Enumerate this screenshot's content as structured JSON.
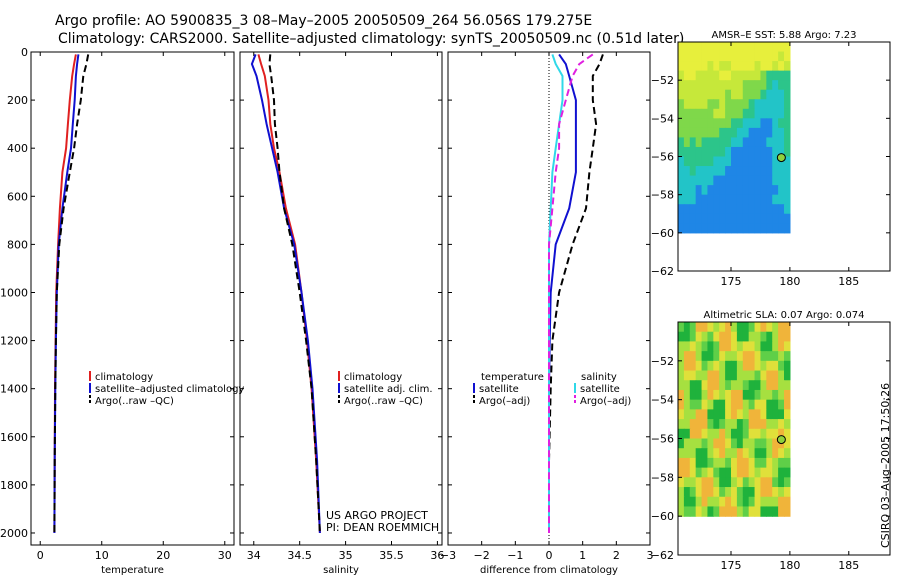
{
  "header": {
    "line1": "Argo profile: AO 5900835_3 08–May–2005 20050509_264 56.056S 179.275E",
    "line2": "Climatology: CARS2000. Satellite–adjusted climatology: synTS_20050509.nc (0.51d later)"
  },
  "credit": {
    "line1": "US ARGO PROJECT",
    "line2": "PI: DEAN ROEMMICH"
  },
  "stamp": "CSIRO 03–Aug–2005 17:50:26",
  "colors": {
    "red": "#e02020",
    "blue": "#1010d0",
    "black": "#000000",
    "cyan": "#30d8e8",
    "magenta": "#e020e0"
  },
  "chart_data": [
    {
      "type": "line",
      "name": "temperature",
      "xlabel": "temperature",
      "xlim": [
        -1.5,
        31.5
      ],
      "xticks": [
        "0",
        "10",
        "20",
        "30"
      ],
      "ylim": [
        2050,
        0
      ],
      "yticks": [
        "0",
        "200",
        "400",
        "600",
        "800",
        "1000",
        "1200",
        "1400",
        "1600",
        "1800",
        "2000"
      ],
      "series": [
        {
          "name": "climatology",
          "color": "red",
          "dash": false,
          "x": [
            5.8,
            5.5,
            5.2,
            4.8,
            4.5,
            4.2,
            3.6,
            3.2,
            2.9,
            2.6,
            2.5,
            2.4,
            2.35,
            2.3
          ],
          "y": [
            10,
            50,
            100,
            200,
            300,
            400,
            500,
            650,
            800,
            1000,
            1200,
            1400,
            1700,
            2000
          ]
        },
        {
          "name": "satellite–adjusted climatology",
          "color": "blue",
          "dash": false,
          "x": [
            6.2,
            6.0,
            5.8,
            5.6,
            5.3,
            5.0,
            4.4,
            3.6,
            3.0,
            2.7,
            2.55,
            2.45,
            2.35,
            2.3
          ],
          "y": [
            10,
            50,
            100,
            200,
            300,
            400,
            500,
            650,
            800,
            1000,
            1200,
            1400,
            1700,
            2000
          ]
        },
        {
          "name": "Argo(..raw –QC)",
          "color": "black",
          "dash": true,
          "x": [
            7.8,
            7.5,
            7.0,
            6.6,
            6.0,
            5.5,
            4.8,
            3.8,
            3.1,
            2.7,
            2.55,
            2.45,
            2.35,
            2.3
          ],
          "y": [
            10,
            50,
            100,
            200,
            300,
            400,
            500,
            650,
            800,
            1000,
            1200,
            1400,
            1700,
            2000
          ]
        }
      ]
    },
    {
      "type": "line",
      "name": "salinity",
      "xlabel": "salinity",
      "xlim": [
        33.85,
        36.05
      ],
      "xticks": [
        "34",
        "34.5",
        "35",
        "35.5",
        "36"
      ],
      "ylim": [
        2050,
        0
      ],
      "series": [
        {
          "name": "climatology",
          "color": "red",
          "dash": false,
          "x": [
            34.05,
            34.08,
            34.12,
            34.16,
            34.18,
            34.22,
            34.28,
            34.35,
            34.45,
            34.52,
            34.58,
            34.63,
            34.68,
            34.72
          ],
          "y": [
            10,
            50,
            100,
            200,
            300,
            400,
            500,
            650,
            800,
            1000,
            1200,
            1400,
            1700,
            2000
          ]
        },
        {
          "name": "satellite adj. clim.",
          "color": "blue",
          "dash": false,
          "x": [
            34.02,
            33.98,
            34.03,
            34.09,
            34.14,
            34.2,
            34.26,
            34.33,
            34.44,
            34.52,
            34.59,
            34.64,
            34.69,
            34.72
          ],
          "y": [
            10,
            50,
            100,
            200,
            300,
            400,
            500,
            650,
            800,
            1000,
            1200,
            1400,
            1700,
            2000
          ]
        },
        {
          "name": "Argo(..raw –QC)",
          "color": "black",
          "dash": true,
          "x": [
            34.18,
            34.17,
            34.19,
            34.22,
            34.23,
            34.26,
            34.28,
            34.33,
            34.42,
            34.5,
            34.57,
            34.63,
            34.68,
            34.72
          ],
          "y": [
            10,
            50,
            100,
            200,
            300,
            400,
            500,
            650,
            800,
            1000,
            1200,
            1400,
            1700,
            2000
          ]
        }
      ]
    },
    {
      "type": "line",
      "name": "difference",
      "xlabel": "difference from climatology",
      "xlim": [
        -3,
        3
      ],
      "xticks": [
        "−3",
        "−2",
        "−1",
        "0",
        "1",
        "2",
        "3"
      ],
      "ylim": [
        2050,
        0
      ],
      "legend_left": {
        "title": "temperature",
        "entries": [
          "satellite",
          "Argo(–adj)"
        ]
      },
      "legend_right": {
        "title": "salinity",
        "entries": [
          "satellite",
          "Argo(–adj)"
        ]
      },
      "series": [
        {
          "name": "temperature satellite",
          "color": "blue",
          "dash": false,
          "x": [
            0.3,
            0.5,
            0.6,
            0.8,
            0.8,
            0.8,
            0.8,
            0.6,
            0.2,
            0.05,
            0.02,
            0.0,
            0.0,
            0.0
          ],
          "y": [
            10,
            50,
            100,
            200,
            300,
            400,
            500,
            650,
            800,
            1000,
            1200,
            1400,
            1700,
            2000
          ]
        },
        {
          "name": "temperature Argo(–adj)",
          "color": "black",
          "dash": true,
          "x": [
            1.6,
            1.5,
            1.3,
            1.3,
            1.4,
            1.3,
            1.2,
            1.1,
            0.7,
            0.3,
            0.1,
            0.05,
            0.0,
            0.0
          ],
          "y": [
            10,
            50,
            100,
            200,
            300,
            400,
            500,
            650,
            800,
            1000,
            1200,
            1400,
            1700,
            2000
          ]
        },
        {
          "name": "salinity satellite",
          "color": "cyan",
          "dash": false,
          "x": [
            0.1,
            0.2,
            0.4,
            0.4,
            0.3,
            0.2,
            0.1,
            0.05,
            0.0,
            0.0,
            0.0,
            0.0,
            0.0,
            0.0
          ],
          "y": [
            10,
            50,
            100,
            200,
            300,
            400,
            500,
            650,
            800,
            1000,
            1200,
            1400,
            1700,
            2000
          ]
        },
        {
          "name": "salinity Argo(–adj)",
          "color": "magenta",
          "dash": true,
          "x": [
            1.3,
            0.9,
            0.7,
            0.5,
            0.3,
            0.3,
            0.2,
            0.1,
            0.0,
            0.0,
            0.0,
            0.0,
            0.0,
            0.0
          ],
          "y": [
            10,
            50,
            100,
            200,
            300,
            400,
            500,
            650,
            800,
            1000,
            1200,
            1400,
            1700,
            2000
          ]
        }
      ]
    },
    {
      "type": "heatmap",
      "name": "amsr",
      "title": "AMSR–E SST: 5.88 Argo: 7.23",
      "xlim": [
        170.5,
        188.5
      ],
      "ylim": [
        -62,
        -50
      ],
      "xticks": [
        "175",
        "180",
        "185"
      ],
      "yticks": [
        "−52",
        "−54",
        "−56",
        "−58",
        "−60",
        "−62"
      ],
      "float_position": {
        "lon": 179.275,
        "lat": -56.056
      }
    },
    {
      "type": "heatmap",
      "name": "sla",
      "title": "Altimetric SLA: 0.07 Argo: 0.074",
      "xlim": [
        170.5,
        188.5
      ],
      "ylim": [
        -62,
        -50
      ],
      "xticks": [
        "175",
        "180",
        "185"
      ],
      "yticks": [
        "−52",
        "−54",
        "−56",
        "−58",
        "−60",
        "−62"
      ],
      "float_position": {
        "lon": 179.275,
        "lat": -56.056
      }
    }
  ]
}
